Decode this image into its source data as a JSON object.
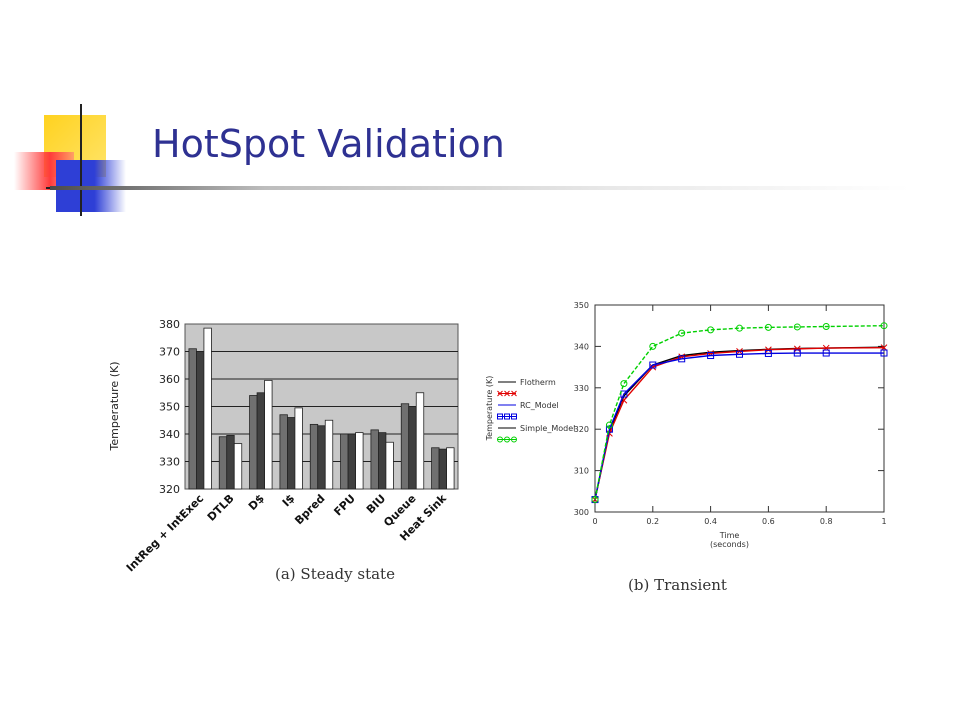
{
  "slide": {
    "title": "HotSpot Validation"
  },
  "colors": {
    "title": "#2e3192",
    "deco_yellow": "#ffd21f",
    "deco_red": "#ff3b3b",
    "deco_blue": "#2e3fd6"
  },
  "chart_data": [
    {
      "type": "bar",
      "caption": "(a) Steady state",
      "ylabel": "Temperature (K)",
      "ylim": [
        320,
        380
      ],
      "yticks": [
        320,
        330,
        340,
        350,
        360,
        370,
        380
      ],
      "grid": true,
      "categories": [
        "IntReg + IntExec",
        "DTLB",
        "D$",
        "I$",
        "Bpred",
        "FPU",
        "BIU",
        "Queue",
        "Heat Sink"
      ],
      "series": [
        {
          "values": [
            371,
            339,
            354,
            347,
            343.5,
            340,
            341.5,
            351,
            335
          ],
          "color": "#707070"
        },
        {
          "values": [
            370,
            339.5,
            355,
            346,
            343,
            340,
            340.5,
            350,
            334.5
          ],
          "color": "#404040"
        },
        {
          "values": [
            378.5,
            336.5,
            359.5,
            349.5,
            345,
            340.5,
            337,
            355,
            335
          ],
          "color": "#ffffff"
        }
      ]
    },
    {
      "type": "line",
      "caption": "(b) Transient",
      "xlabel": "Time\n(seconds)",
      "ylabel": "Temperature (K)",
      "xlim": [
        0,
        1
      ],
      "ylim": [
        300,
        350
      ],
      "xticks": [
        "0",
        "0.2",
        "0.4",
        "0.6",
        "0.8",
        "1"
      ],
      "yticks": [
        "300",
        "310",
        "320",
        "330",
        "340",
        "350"
      ],
      "legend_position": "left",
      "series": [
        {
          "name": "Flotherm",
          "color": "#000000",
          "marker": "none",
          "x": [
            0,
            0.05,
            0.1,
            0.2,
            0.3,
            0.4,
            0.5,
            0.6,
            0.7,
            0.8,
            1.0
          ],
          "y": [
            303,
            319.5,
            328,
            335.5,
            337.8,
            338.6,
            339.0,
            339.3,
            339.5,
            339.6,
            339.8
          ]
        },
        {
          "name": "",
          "color": "#e00000",
          "marker": "x",
          "x": [
            0,
            0.05,
            0.1,
            0.2,
            0.3,
            0.4,
            0.5,
            0.6,
            0.7,
            0.8,
            1.0
          ],
          "y": [
            303,
            319,
            327,
            335,
            337.5,
            338.3,
            338.8,
            339.2,
            339.4,
            339.6,
            339.7
          ]
        },
        {
          "name": "RC_Model",
          "color": "#0000e0",
          "marker": "square",
          "x": [
            0,
            0.05,
            0.1,
            0.2,
            0.3,
            0.4,
            0.5,
            0.6,
            0.7,
            0.8,
            1.0
          ],
          "y": [
            303,
            320,
            328.5,
            335.5,
            337.0,
            337.8,
            338.1,
            338.3,
            338.4,
            338.4,
            338.4
          ]
        },
        {
          "name": "Simple_Model",
          "color": "#00d000",
          "marker": "circle",
          "x": [
            0,
            0.05,
            0.1,
            0.2,
            0.3,
            0.4,
            0.5,
            0.6,
            0.7,
            0.8,
            1.0
          ],
          "y": [
            303,
            321,
            331,
            340,
            343.2,
            344.0,
            344.4,
            344.6,
            344.7,
            344.8,
            345.0
          ]
        }
      ],
      "legend_labels": [
        "Flotherm",
        "",
        "RC_Model",
        "",
        "Simple_Model",
        ""
      ]
    }
  ]
}
